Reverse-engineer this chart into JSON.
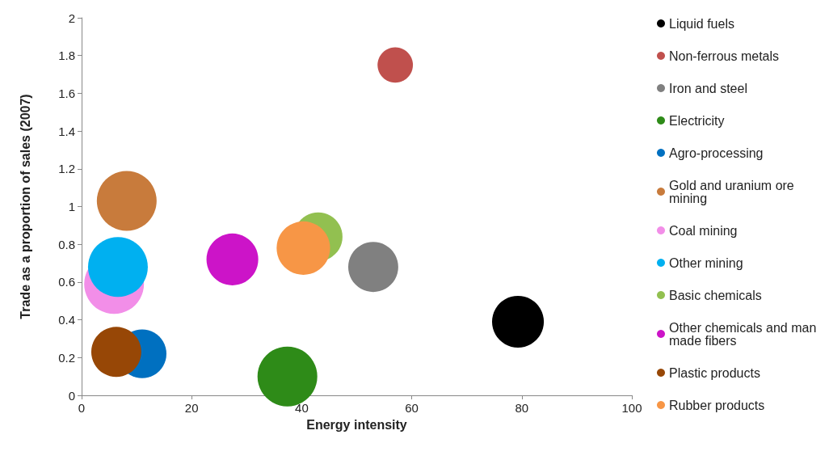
{
  "chart_data": {
    "type": "bubble",
    "xlabel": "Energy intensity",
    "ylabel": "Trade as a proportion of sales (2007)",
    "xlim": [
      0,
      100
    ],
    "xticks": [
      0,
      20,
      40,
      60,
      80,
      100
    ],
    "ylim": [
      0,
      2
    ],
    "yticks": [
      0,
      0.2,
      0.4,
      0.6,
      0.8,
      1,
      1.2,
      1.4,
      1.6,
      1.8,
      2
    ],
    "grid": false,
    "legend": "right",
    "marker": "circle",
    "series": [
      {
        "name": "Liquid fuels",
        "color": "#000000",
        "x": [
          79.3
        ],
        "values": [
          0.39
        ],
        "sizes": [
          0.75
        ]
      },
      {
        "name": "Non-ferrous metals",
        "color": "#c0504d",
        "x": [
          57
        ],
        "values": [
          1.75
        ],
        "sizes": [
          0.35
        ]
      },
      {
        "name": "Iron and steel",
        "color": "#808080",
        "x": [
          53
        ],
        "values": [
          0.68
        ],
        "sizes": [
          0.7
        ]
      },
      {
        "name": "Electricity",
        "color": "#2e8b18",
        "x": [
          37.4
        ],
        "values": [
          0.1
        ],
        "sizes": [
          1
        ]
      },
      {
        "name": "Agro-processing",
        "color": "#0070c0",
        "x": [
          11
        ],
        "values": [
          0.22
        ],
        "sizes": [
          0.66
        ]
      },
      {
        "name": "Gold and uranium ore mining",
        "color": "#c87b3c",
        "x": [
          8.2
        ],
        "values": [
          1.03
        ],
        "sizes": [
          1
        ]
      },
      {
        "name": "Coal mining",
        "color": "#f28ee8",
        "x": [
          5.9
        ],
        "values": [
          0.59
        ],
        "sizes": [
          1
        ]
      },
      {
        "name": "Other mining",
        "color": "#00b0f0",
        "x": [
          6.6
        ],
        "values": [
          0.68
        ],
        "sizes": [
          1
        ]
      },
      {
        "name": "Basic chemicals",
        "color": "#92c050",
        "x": [
          43
        ],
        "values": [
          0.84
        ],
        "sizes": [
          0.66
        ]
      },
      {
        "name": "Other chemicals and man made fibers",
        "color": "#cc14c8",
        "x": [
          27.4
        ],
        "values": [
          0.72
        ],
        "sizes": [
          0.75
        ]
      },
      {
        "name": "Plastic products",
        "color": "#974706",
        "x": [
          6.3
        ],
        "values": [
          0.23
        ],
        "sizes": [
          0.7
        ]
      },
      {
        "name": "Rubber products",
        "color": "#f79646",
        "x": [
          40.3
        ],
        "values": [
          0.78
        ],
        "sizes": [
          0.8
        ]
      }
    ]
  }
}
